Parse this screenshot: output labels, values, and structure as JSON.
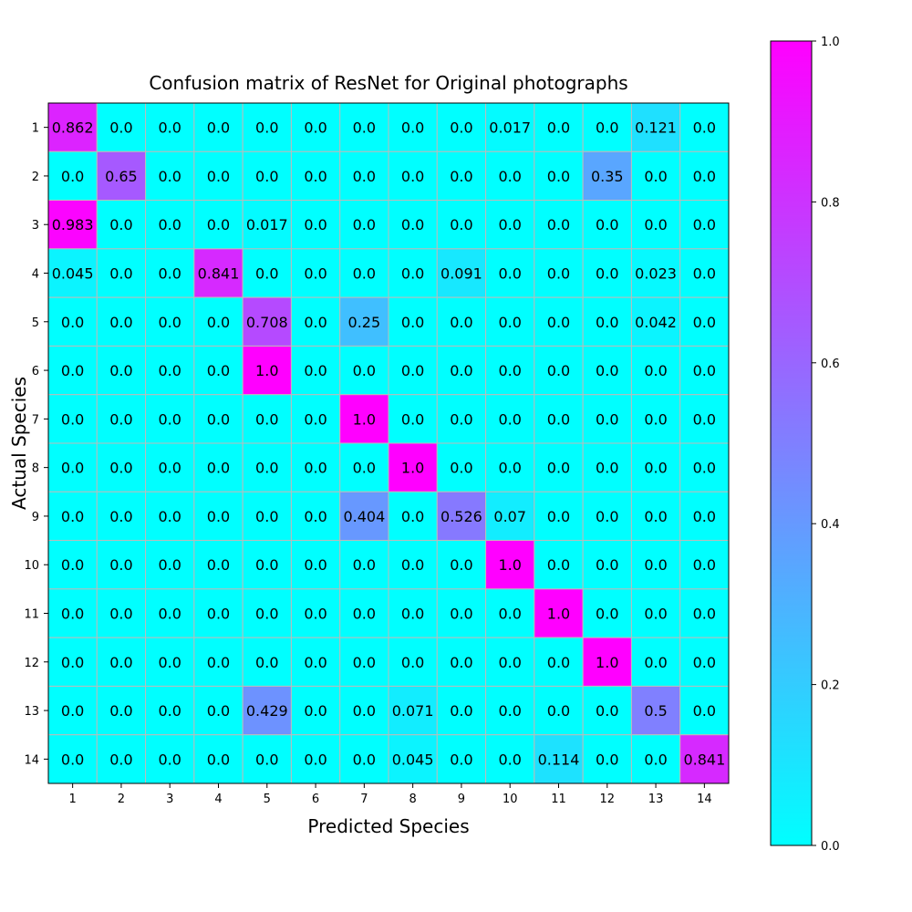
{
  "chart_data": {
    "type": "heatmap",
    "title": "Confusion matrix of ResNet for Original photographs",
    "xlabel": "Predicted Species",
    "ylabel": "Actual Species",
    "x_categories": [
      "1",
      "2",
      "3",
      "4",
      "5",
      "6",
      "7",
      "8",
      "9",
      "10",
      "11",
      "12",
      "13",
      "14"
    ],
    "y_categories": [
      "1",
      "2",
      "3",
      "4",
      "5",
      "6",
      "7",
      "8",
      "9",
      "10",
      "11",
      "12",
      "13",
      "14"
    ],
    "values": [
      [
        "0.862",
        "0.0",
        "0.0",
        "0.0",
        "0.0",
        "0.0",
        "0.0",
        "0.0",
        "0.0",
        "0.017",
        "0.0",
        "0.0",
        "0.121",
        "0.0"
      ],
      [
        "0.0",
        "0.65",
        "0.0",
        "0.0",
        "0.0",
        "0.0",
        "0.0",
        "0.0",
        "0.0",
        "0.0",
        "0.0",
        "0.35",
        "0.0",
        "0.0"
      ],
      [
        "0.983",
        "0.0",
        "0.0",
        "0.0",
        "0.017",
        "0.0",
        "0.0",
        "0.0",
        "0.0",
        "0.0",
        "0.0",
        "0.0",
        "0.0",
        "0.0"
      ],
      [
        "0.045",
        "0.0",
        "0.0",
        "0.841",
        "0.0",
        "0.0",
        "0.0",
        "0.0",
        "0.091",
        "0.0",
        "0.0",
        "0.0",
        "0.023",
        "0.0"
      ],
      [
        "0.0",
        "0.0",
        "0.0",
        "0.0",
        "0.708",
        "0.0",
        "0.25",
        "0.0",
        "0.0",
        "0.0",
        "0.0",
        "0.0",
        "0.042",
        "0.0"
      ],
      [
        "0.0",
        "0.0",
        "0.0",
        "0.0",
        "1.0",
        "0.0",
        "0.0",
        "0.0",
        "0.0",
        "0.0",
        "0.0",
        "0.0",
        "0.0",
        "0.0"
      ],
      [
        "0.0",
        "0.0",
        "0.0",
        "0.0",
        "0.0",
        "0.0",
        "1.0",
        "0.0",
        "0.0",
        "0.0",
        "0.0",
        "0.0",
        "0.0",
        "0.0"
      ],
      [
        "0.0",
        "0.0",
        "0.0",
        "0.0",
        "0.0",
        "0.0",
        "0.0",
        "1.0",
        "0.0",
        "0.0",
        "0.0",
        "0.0",
        "0.0",
        "0.0"
      ],
      [
        "0.0",
        "0.0",
        "0.0",
        "0.0",
        "0.0",
        "0.0",
        "0.404",
        "0.0",
        "0.526",
        "0.07",
        "0.0",
        "0.0",
        "0.0",
        "0.0"
      ],
      [
        "0.0",
        "0.0",
        "0.0",
        "0.0",
        "0.0",
        "0.0",
        "0.0",
        "0.0",
        "0.0",
        "1.0",
        "0.0",
        "0.0",
        "0.0",
        "0.0"
      ],
      [
        "0.0",
        "0.0",
        "0.0",
        "0.0",
        "0.0",
        "0.0",
        "0.0",
        "0.0",
        "0.0",
        "0.0",
        "1.0",
        "0.0",
        "0.0",
        "0.0"
      ],
      [
        "0.0",
        "0.0",
        "0.0",
        "0.0",
        "0.0",
        "0.0",
        "0.0",
        "0.0",
        "0.0",
        "0.0",
        "0.0",
        "1.0",
        "0.0",
        "0.0"
      ],
      [
        "0.0",
        "0.0",
        "0.0",
        "0.0",
        "0.429",
        "0.0",
        "0.0",
        "0.071",
        "0.0",
        "0.0",
        "0.0",
        "0.0",
        "0.5",
        "0.0"
      ],
      [
        "0.0",
        "0.0",
        "0.0",
        "0.0",
        "0.0",
        "0.0",
        "0.0",
        "0.045",
        "0.0",
        "0.0",
        "0.114",
        "0.0",
        "0.0",
        "0.841"
      ]
    ],
    "colormap": "cool",
    "color_min": "#00ffff",
    "color_max": "#ff00ff",
    "colorbar_range": [
      0.0,
      1.0
    ],
    "colorbar_ticks": [
      "0.0",
      "0.2",
      "0.4",
      "0.6",
      "0.8",
      "1.0"
    ],
    "grid": true,
    "grid_color": "#bbbbbb"
  }
}
